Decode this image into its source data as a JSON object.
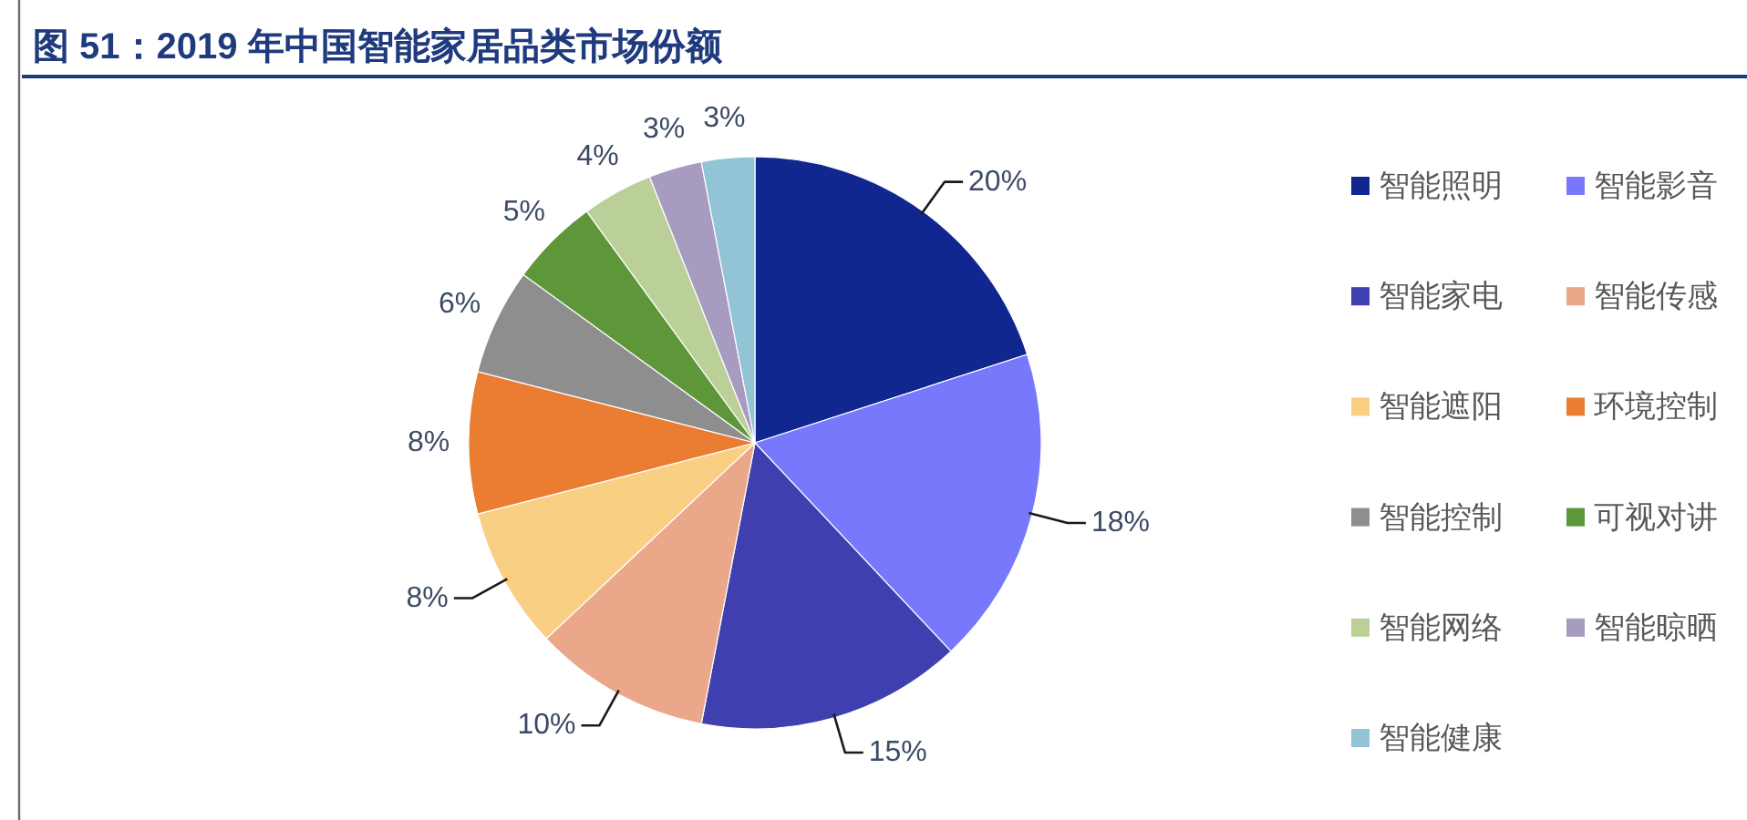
{
  "chart_data": {
    "type": "pie",
    "title": "图 51：2019 年中国智能家居品类市场份额",
    "categories": [
      "智能照明",
      "智能影音",
      "智能家电",
      "智能传感",
      "智能遮阳",
      "环境控制",
      "智能控制",
      "可视对讲",
      "智能网络",
      "智能晾晒",
      "智能健康"
    ],
    "values": [
      20,
      18,
      15,
      10,
      8,
      8,
      6,
      5,
      4,
      3,
      3
    ],
    "colors": [
      "#10278f",
      "#7878fd",
      "#3f3faf",
      "#eba789",
      "#f9cf83",
      "#ea7d32",
      "#8e8e8e",
      "#5e973a",
      "#bbd098",
      "#a89bc0",
      "#93c4d6"
    ],
    "value_labels": [
      "20%",
      "18%",
      "15%",
      "10%",
      "8%",
      "8%",
      "6%",
      "5%",
      "4%",
      "3%",
      "3%"
    ],
    "legend": "right"
  }
}
